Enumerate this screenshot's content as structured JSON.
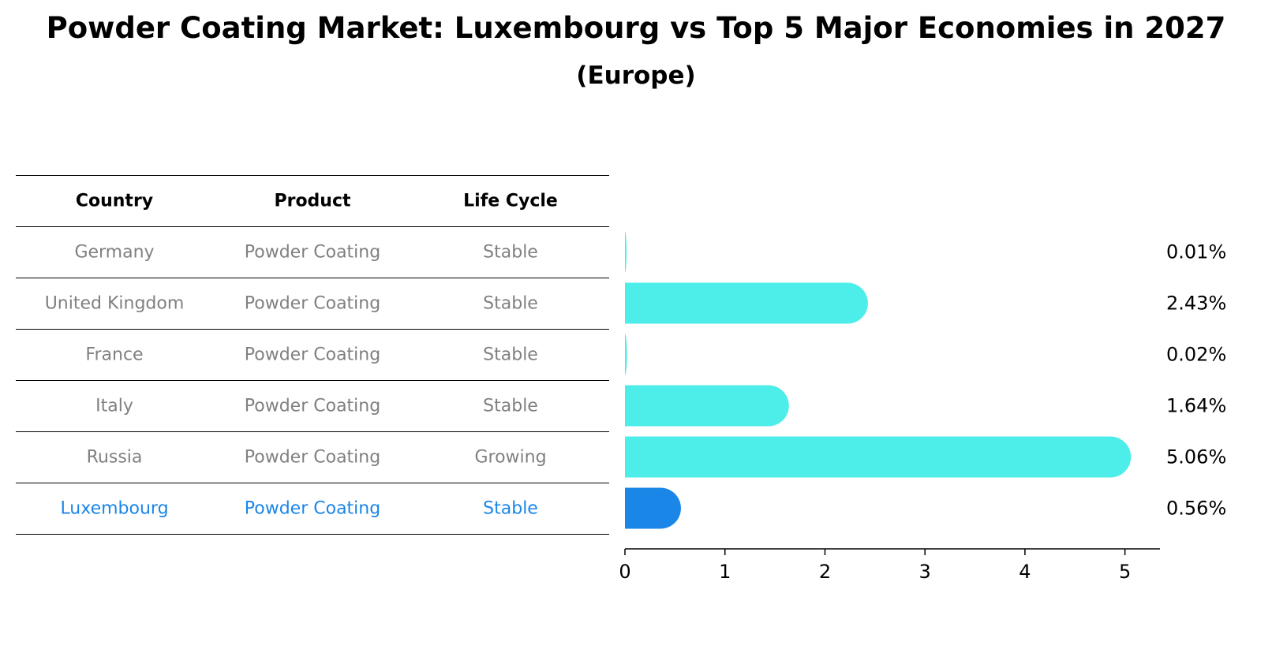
{
  "title": "Powder Coating Market: Luxembourg vs Top 5 Major Economies in 2027",
  "subtitle": "(Europe)",
  "table": {
    "headers": [
      "Country",
      "Product",
      "Life Cycle"
    ],
    "rows": [
      {
        "country": "Germany",
        "product": "Powder Coating",
        "life_cycle": "Stable"
      },
      {
        "country": "United Kingdom",
        "product": "Powder Coating",
        "life_cycle": "Stable"
      },
      {
        "country": "France",
        "product": "Powder Coating",
        "life_cycle": "Stable"
      },
      {
        "country": "Italy",
        "product": "Powder Coating",
        "life_cycle": "Stable"
      },
      {
        "country": "Russia",
        "product": "Powder Coating",
        "life_cycle": "Growing"
      },
      {
        "country": "Luxembourg",
        "product": "Powder Coating",
        "life_cycle": "Stable"
      }
    ],
    "highlight_row": 5
  },
  "colors": {
    "bar": "#4dede9",
    "highlight_bar": "#1a86e8",
    "row_text": "#808080",
    "highlight_text": "#1a86e8"
  },
  "chart_data": {
    "type": "bar",
    "orientation": "horizontal",
    "categories": [
      "Germany",
      "United Kingdom",
      "France",
      "Italy",
      "Russia",
      "Luxembourg"
    ],
    "values": [
      0.01,
      2.43,
      0.02,
      1.64,
      5.06,
      0.56
    ],
    "value_labels": [
      "0.01%",
      "2.43%",
      "0.02%",
      "1.64%",
      "5.06%",
      "0.56%"
    ],
    "xlim": [
      0,
      5.35
    ],
    "xticks": [
      0,
      1,
      2,
      3,
      4,
      5
    ],
    "highlight_category": "Luxembourg",
    "grid": false
  }
}
